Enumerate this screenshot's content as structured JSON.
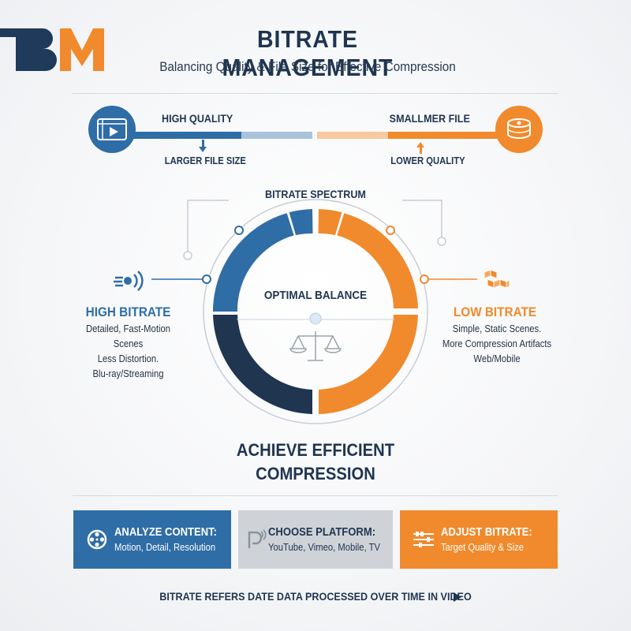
{
  "logo": {
    "text": "BM",
    "colors": {
      "b": "#1f3a5a",
      "m": "#f08a2c"
    }
  },
  "header": {
    "title": "BITRATE MANAGEMENT",
    "subtitle": "Balancing Quality & File Size for Effective Compression"
  },
  "tradeoff": {
    "left_label": "HIGH QUALITY",
    "left_sub": "LARGER FILE SIZE",
    "right_label": "SMALLMER FILE",
    "right_sub": "LOWER QUALITY",
    "left_icon": "video-player-icon",
    "right_icon": "disc-stack-icon"
  },
  "spectrum": {
    "title": "BITRATE SPECTRUM",
    "center_label": "OPTIMAL BALANCE",
    "center_icon": "scale-icon",
    "high": {
      "title": "HIGH BITRATE",
      "lines": [
        "Detailed, Fast-Motion Scenes",
        "Less Distortion.",
        "Blu-ray/Streaming"
      ],
      "icon": "signal-waves-icon"
    },
    "low": {
      "title": "LOW BITRATE",
      "lines": [
        "Simple, Static Scenes.",
        "More Compression Artifacts",
        "Web/Mobile"
      ],
      "icon": "boxes-icon"
    }
  },
  "achieve": {
    "line1": "ACHIEVE EFFICIENT",
    "line2": "COMPRESSION"
  },
  "cards": [
    {
      "title": "ANALYZE CONTENT:",
      "sub": "Motion, Detail, Resolution",
      "icon": "film-reel-icon",
      "bg": "#2f6da6",
      "fg": "#ffffff"
    },
    {
      "title": "CHOOSE PLATFORM:",
      "sub": "YouTube, Vimeo, Mobile, TV",
      "icon": "platform-logo-icon",
      "bg": "#cfd3d8",
      "fg": "#1f3550"
    },
    {
      "title": "ADJUST BITRATE:",
      "sub": "Target Quality & Size",
      "icon": "sliders-icon",
      "bg": "#f08a2c",
      "fg": "#ffffff"
    }
  ],
  "footer": {
    "text": "BITRATE REFERS DATE DATA PROCESSED OVER TIME IN VIDEO",
    "icon": "play-arrow-icon"
  },
  "colors": {
    "blue": "#2f6da6",
    "navy": "#1f3550",
    "orange": "#f08a2c",
    "light_blue": "#a9c3dc",
    "light_orange": "#f6c9a0"
  }
}
